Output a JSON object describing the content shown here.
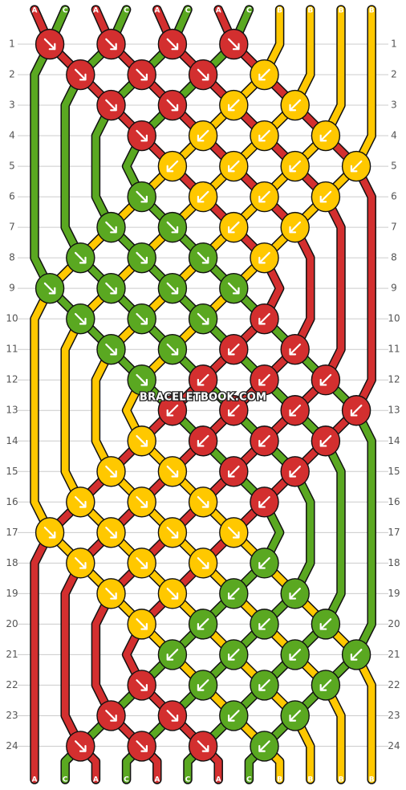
{
  "colors": {
    "A": "#d32f2f",
    "C": "#5aa821",
    "B": "#ffc800",
    "grid": "#cccccc",
    "outline": "#111111"
  },
  "top_labels": [
    "A",
    "C",
    "A",
    "C",
    "A",
    "C",
    "A",
    "C",
    "B",
    "B",
    "B",
    "B"
  ],
  "bottom_labels": [
    "A",
    "C",
    "A",
    "C",
    "A",
    "C",
    "A",
    "C",
    "B",
    "B",
    "B",
    "B"
  ],
  "row_numbers": [
    "1",
    "2",
    "3",
    "4",
    "5",
    "6",
    "7",
    "8",
    "9",
    "10",
    "11",
    "12",
    "13",
    "14",
    "15",
    "16",
    "17",
    "18",
    "19",
    "20",
    "21",
    "22",
    "23",
    "24"
  ],
  "watermark": "BRACELETBOOK.COM",
  "knot_rows": [
    {
      "row": 1,
      "knots": [
        {
          "pos": 1,
          "color": "A",
          "dir": "f"
        },
        {
          "pos": 3,
          "color": "A",
          "dir": "f"
        },
        {
          "pos": 5,
          "color": "A",
          "dir": "f"
        },
        {
          "pos": 7,
          "color": "A",
          "dir": "f"
        }
      ]
    },
    {
      "row": 2,
      "knots": [
        {
          "pos": 2,
          "color": "A",
          "dir": "f"
        },
        {
          "pos": 4,
          "color": "A",
          "dir": "f"
        },
        {
          "pos": 6,
          "color": "A",
          "dir": "f"
        },
        {
          "pos": 8,
          "color": "B",
          "dir": "b"
        }
      ]
    },
    {
      "row": 3,
      "knots": [
        {
          "pos": 3,
          "color": "A",
          "dir": "f"
        },
        {
          "pos": 5,
          "color": "A",
          "dir": "f"
        },
        {
          "pos": 7,
          "color": "B",
          "dir": "b"
        },
        {
          "pos": 9,
          "color": "B",
          "dir": "b"
        }
      ]
    },
    {
      "row": 4,
      "knots": [
        {
          "pos": 4,
          "color": "A",
          "dir": "f"
        },
        {
          "pos": 6,
          "color": "B",
          "dir": "b"
        },
        {
          "pos": 8,
          "color": "B",
          "dir": "b"
        },
        {
          "pos": 10,
          "color": "B",
          "dir": "b"
        }
      ]
    },
    {
      "row": 5,
      "knots": [
        {
          "pos": 5,
          "color": "B",
          "dir": "b"
        },
        {
          "pos": 7,
          "color": "B",
          "dir": "b"
        },
        {
          "pos": 9,
          "color": "B",
          "dir": "b"
        },
        {
          "pos": 11,
          "color": "B",
          "dir": "b"
        }
      ]
    },
    {
      "row": 6,
      "knots": [
        {
          "pos": 4,
          "color": "C",
          "dir": "f"
        },
        {
          "pos": 6,
          "color": "B",
          "dir": "b"
        },
        {
          "pos": 8,
          "color": "B",
          "dir": "b"
        },
        {
          "pos": 10,
          "color": "B",
          "dir": "b"
        }
      ]
    },
    {
      "row": 7,
      "knots": [
        {
          "pos": 3,
          "color": "C",
          "dir": "f"
        },
        {
          "pos": 5,
          "color": "C",
          "dir": "f"
        },
        {
          "pos": 7,
          "color": "B",
          "dir": "b"
        },
        {
          "pos": 9,
          "color": "B",
          "dir": "b"
        }
      ]
    },
    {
      "row": 8,
      "knots": [
        {
          "pos": 2,
          "color": "C",
          "dir": "f"
        },
        {
          "pos": 4,
          "color": "C",
          "dir": "f"
        },
        {
          "pos": 6,
          "color": "C",
          "dir": "f"
        },
        {
          "pos": 8,
          "color": "B",
          "dir": "b"
        }
      ]
    },
    {
      "row": 9,
      "knots": [
        {
          "pos": 1,
          "color": "C",
          "dir": "f"
        },
        {
          "pos": 3,
          "color": "C",
          "dir": "f"
        },
        {
          "pos": 5,
          "color": "C",
          "dir": "f"
        },
        {
          "pos": 7,
          "color": "C",
          "dir": "f"
        }
      ]
    },
    {
      "row": 10,
      "knots": [
        {
          "pos": 2,
          "color": "C",
          "dir": "f"
        },
        {
          "pos": 4,
          "color": "C",
          "dir": "f"
        },
        {
          "pos": 6,
          "color": "C",
          "dir": "f"
        },
        {
          "pos": 8,
          "color": "A",
          "dir": "b"
        }
      ]
    },
    {
      "row": 11,
      "knots": [
        {
          "pos": 3,
          "color": "C",
          "dir": "f"
        },
        {
          "pos": 5,
          "color": "C",
          "dir": "f"
        },
        {
          "pos": 7,
          "color": "A",
          "dir": "b"
        },
        {
          "pos": 9,
          "color": "A",
          "dir": "b"
        }
      ]
    },
    {
      "row": 12,
      "knots": [
        {
          "pos": 4,
          "color": "C",
          "dir": "f"
        },
        {
          "pos": 6,
          "color": "A",
          "dir": "b"
        },
        {
          "pos": 8,
          "color": "A",
          "dir": "b"
        },
        {
          "pos": 10,
          "color": "A",
          "dir": "b"
        }
      ]
    },
    {
      "row": 13,
      "knots": [
        {
          "pos": 5,
          "color": "A",
          "dir": "b"
        },
        {
          "pos": 7,
          "color": "A",
          "dir": "b"
        },
        {
          "pos": 9,
          "color": "A",
          "dir": "b"
        },
        {
          "pos": 11,
          "color": "A",
          "dir": "b"
        }
      ]
    },
    {
      "row": 14,
      "knots": [
        {
          "pos": 4,
          "color": "B",
          "dir": "f"
        },
        {
          "pos": 6,
          "color": "A",
          "dir": "b"
        },
        {
          "pos": 8,
          "color": "A",
          "dir": "b"
        },
        {
          "pos": 10,
          "color": "A",
          "dir": "b"
        }
      ]
    },
    {
      "row": 15,
      "knots": [
        {
          "pos": 3,
          "color": "B",
          "dir": "f"
        },
        {
          "pos": 5,
          "color": "B",
          "dir": "f"
        },
        {
          "pos": 7,
          "color": "A",
          "dir": "b"
        },
        {
          "pos": 9,
          "color": "A",
          "dir": "b"
        }
      ]
    },
    {
      "row": 16,
      "knots": [
        {
          "pos": 2,
          "color": "B",
          "dir": "f"
        },
        {
          "pos": 4,
          "color": "B",
          "dir": "f"
        },
        {
          "pos": 6,
          "color": "B",
          "dir": "f"
        },
        {
          "pos": 8,
          "color": "A",
          "dir": "b"
        }
      ]
    },
    {
      "row": 17,
      "knots": [
        {
          "pos": 1,
          "color": "B",
          "dir": "f"
        },
        {
          "pos": 3,
          "color": "B",
          "dir": "f"
        },
        {
          "pos": 5,
          "color": "B",
          "dir": "f"
        },
        {
          "pos": 7,
          "color": "B",
          "dir": "f"
        }
      ]
    },
    {
      "row": 18,
      "knots": [
        {
          "pos": 2,
          "color": "B",
          "dir": "f"
        },
        {
          "pos": 4,
          "color": "B",
          "dir": "f"
        },
        {
          "pos": 6,
          "color": "B",
          "dir": "f"
        },
        {
          "pos": 8,
          "color": "C",
          "dir": "b"
        }
      ]
    },
    {
      "row": 19,
      "knots": [
        {
          "pos": 3,
          "color": "B",
          "dir": "f"
        },
        {
          "pos": 5,
          "color": "B",
          "dir": "f"
        },
        {
          "pos": 7,
          "color": "C",
          "dir": "b"
        },
        {
          "pos": 9,
          "color": "C",
          "dir": "b"
        }
      ]
    },
    {
      "row": 20,
      "knots": [
        {
          "pos": 4,
          "color": "B",
          "dir": "f"
        },
        {
          "pos": 6,
          "color": "C",
          "dir": "b"
        },
        {
          "pos": 8,
          "color": "C",
          "dir": "b"
        },
        {
          "pos": 10,
          "color": "C",
          "dir": "b"
        }
      ]
    },
    {
      "row": 21,
      "knots": [
        {
          "pos": 5,
          "color": "C",
          "dir": "b"
        },
        {
          "pos": 7,
          "color": "C",
          "dir": "b"
        },
        {
          "pos": 9,
          "color": "C",
          "dir": "b"
        },
        {
          "pos": 11,
          "color": "C",
          "dir": "b"
        }
      ]
    },
    {
      "row": 22,
      "knots": [
        {
          "pos": 4,
          "color": "A",
          "dir": "f"
        },
        {
          "pos": 6,
          "color": "C",
          "dir": "b"
        },
        {
          "pos": 8,
          "color": "C",
          "dir": "b"
        },
        {
          "pos": 10,
          "color": "C",
          "dir": "b"
        }
      ]
    },
    {
      "row": 23,
      "knots": [
        {
          "pos": 3,
          "color": "A",
          "dir": "f"
        },
        {
          "pos": 5,
          "color": "A",
          "dir": "f"
        },
        {
          "pos": 7,
          "color": "C",
          "dir": "b"
        },
        {
          "pos": 9,
          "color": "C",
          "dir": "b"
        }
      ]
    },
    {
      "row": 24,
      "knots": [
        {
          "pos": 2,
          "color": "A",
          "dir": "f"
        },
        {
          "pos": 4,
          "color": "A",
          "dir": "f"
        },
        {
          "pos": 6,
          "color": "A",
          "dir": "f"
        },
        {
          "pos": 8,
          "color": "C",
          "dir": "b"
        }
      ]
    }
  ]
}
